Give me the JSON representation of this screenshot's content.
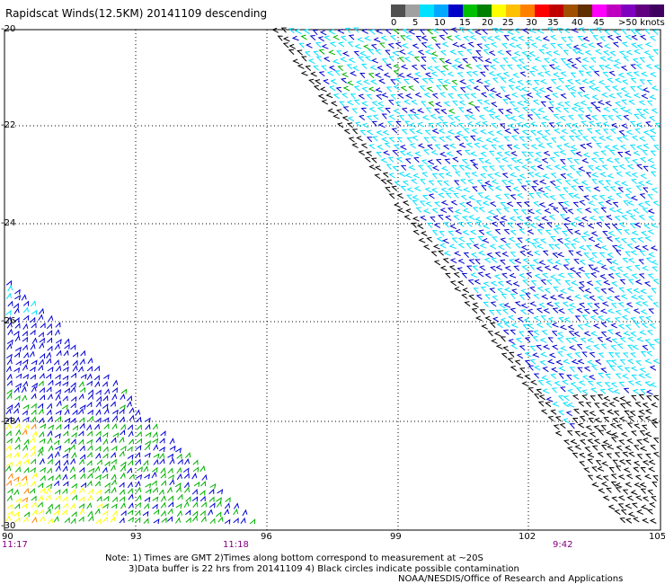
{
  "title": "Rapidscat Winds(12.5KM) 20141109 descending",
  "legend": {
    "labels": [
      "0",
      "5",
      "10",
      "15",
      "20",
      "25",
      "30",
      "35",
      "40",
      "45",
      ">50 knots"
    ],
    "colors": [
      "#505050",
      "#a0a0a0",
      "#00e0ff",
      "#00a8ff",
      "#0000c8",
      "#00c000",
      "#008000",
      "#ffff00",
      "#ffc000",
      "#ff8000",
      "#ff0000",
      "#c00000",
      "#a05000",
      "#603000",
      "#ff00ff",
      "#c000c0",
      "#8000c0",
      "#600080",
      "#400060"
    ]
  },
  "axes": {
    "x_ticks": [
      "90",
      "93",
      "96",
      "99",
      "102",
      "105"
    ],
    "y_ticks": [
      "-20",
      "-22",
      "-24",
      "-26",
      "-28",
      "-30"
    ]
  },
  "times": [
    "11:17",
    "11:18",
    "9:42"
  ],
  "notes": {
    "line1": "Note: 1) Times are GMT 2)Times along bottom correspond to measurement at ~20S",
    "line2": "3)Data buffer is 22 hrs from 20141109 4) Black circles indicate possible contamination",
    "line3": "NOAA/NESDIS/Office of Research and Applications"
  },
  "colors": {
    "cyan": "#00e0ff",
    "blue": "#0000d0",
    "green": "#00b000",
    "yellow": "#ffff00",
    "orange": "#ff8000",
    "black": "#000000"
  }
}
